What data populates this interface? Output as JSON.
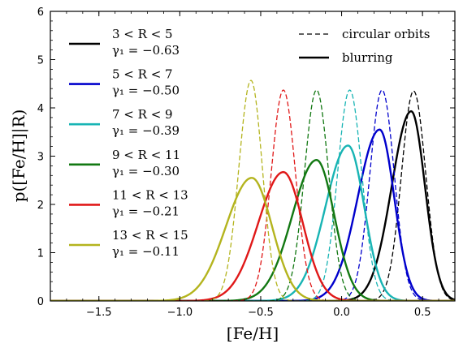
{
  "chart_data": {
    "type": "line",
    "xlabel": "[Fe/H]",
    "ylabel": "p([Fe/H]|R)",
    "xlim": [
      -1.8,
      0.7
    ],
    "ylim": [
      0,
      6
    ],
    "xticks": [
      -1.5,
      -1.0,
      -0.5,
      0.0,
      0.5
    ],
    "xtick_labels": [
      "−1.5",
      "−1.0",
      "−0.5",
      "0.0",
      "0.5"
    ],
    "yticks": [
      0,
      1,
      2,
      3,
      4,
      5,
      6
    ],
    "ytick_labels": [
      "0",
      "1",
      "2",
      "3",
      "4",
      "5",
      "6"
    ],
    "grid": false,
    "style_legend": {
      "placement": "top-right",
      "entries": [
        {
          "label": "circular orbits",
          "linestyle": "dashed"
        },
        {
          "label": "blurring",
          "linestyle": "solid"
        }
      ]
    },
    "series_legend": {
      "placement": "top-left",
      "entries": [
        {
          "range": "3 < R < 5",
          "gamma": "γ₁ = −0.63",
          "color": "#000000"
        },
        {
          "range": "5 < R < 7",
          "gamma": "γ₁ = −0.50",
          "color": "#0000cc"
        },
        {
          "range": "7 < R < 9",
          "gamma": "γ₁ = −0.39",
          "color": "#18b4b4"
        },
        {
          "range": "9 < R < 11",
          "gamma": "γ₁ = −0.30",
          "color": "#127812"
        },
        {
          "range": "11 < R < 13",
          "gamma": "γ₁ = −0.21",
          "color": "#e01818"
        },
        {
          "range": "13 < R < 15",
          "gamma": "γ₁ = −0.11",
          "color": "#b4b41e"
        }
      ]
    },
    "series": [
      {
        "color": "#000000",
        "dashed": {
          "peak_x": 0.445,
          "peak_y": 4.35,
          "sigma_left": 0.075,
          "sigma_right": 0.075
        },
        "solid": {
          "peak_x": 0.43,
          "peak_y": 3.93,
          "sigma_left": 0.12,
          "sigma_right": 0.085
        }
      },
      {
        "color": "#0000cc",
        "dashed": {
          "peak_x": 0.25,
          "peak_y": 4.37,
          "sigma_left": 0.075,
          "sigma_right": 0.075
        },
        "solid": {
          "peak_x": 0.235,
          "peak_y": 3.55,
          "sigma_left": 0.135,
          "sigma_right": 0.09
        }
      },
      {
        "color": "#18b4b4",
        "dashed": {
          "peak_x": 0.05,
          "peak_y": 4.37,
          "sigma_left": 0.075,
          "sigma_right": 0.075
        },
        "solid": {
          "peak_x": 0.04,
          "peak_y": 3.22,
          "sigma_left": 0.14,
          "sigma_right": 0.1
        }
      },
      {
        "color": "#127812",
        "dashed": {
          "peak_x": -0.155,
          "peak_y": 4.37,
          "sigma_left": 0.075,
          "sigma_right": 0.075
        },
        "solid": {
          "peak_x": -0.155,
          "peak_y": 2.92,
          "sigma_left": 0.15,
          "sigma_right": 0.11
        }
      },
      {
        "color": "#e01818",
        "dashed": {
          "peak_x": -0.36,
          "peak_y": 4.37,
          "sigma_left": 0.075,
          "sigma_right": 0.075
        },
        "solid": {
          "peak_x": -0.36,
          "peak_y": 2.67,
          "sigma_left": 0.155,
          "sigma_right": 0.12
        }
      },
      {
        "color": "#b4b41e",
        "dashed": {
          "peak_x": -0.56,
          "peak_y": 4.57,
          "sigma_left": 0.075,
          "sigma_right": 0.07
        },
        "solid": {
          "peak_x": -0.555,
          "peak_y": 2.55,
          "sigma_left": 0.16,
          "sigma_right": 0.125
        }
      }
    ]
  }
}
